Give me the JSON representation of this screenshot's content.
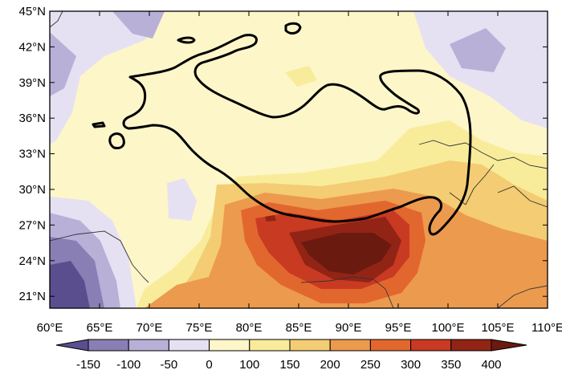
{
  "map": {
    "lat_labels": [
      "45°N",
      "42°N",
      "39°N",
      "36°N",
      "33°N",
      "30°N",
      "27°N",
      "24°N",
      "21°N"
    ],
    "lon_labels": [
      "60°E",
      "65°E",
      "70°E",
      "75°E",
      "80°E",
      "85°E",
      "90°E",
      "95°E",
      "100°E",
      "105°E",
      "110°E"
    ],
    "extent": {
      "lon": [
        60,
        110
      ],
      "lat": [
        20,
        45
      ]
    }
  },
  "colorbar": {
    "labels": [
      "-150",
      "-100",
      "-50",
      "0",
      "100",
      "150",
      "200",
      "250",
      "300",
      "350",
      "400"
    ],
    "colors": [
      "#5b4e8f",
      "#8a7fb5",
      "#b9b0d8",
      "#e6e1f2",
      "#fdf6c9",
      "#f8ec9a",
      "#f4cc73",
      "#ec9a4e",
      "#e2672e",
      "#c93a22",
      "#922416",
      "#6b1a10"
    ]
  },
  "colors": {
    "plateau_outline": "#000000",
    "border": "#333333"
  }
}
